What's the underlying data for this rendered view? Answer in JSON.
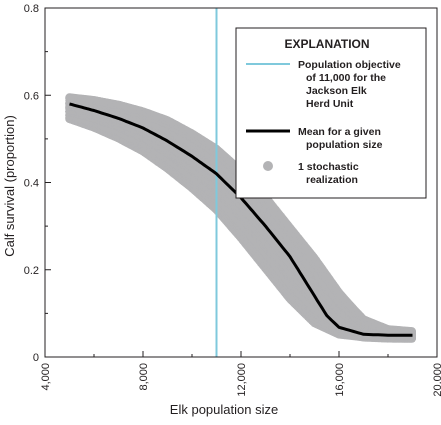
{
  "chart_data": {
    "type": "scatter",
    "xlabel": "Elk population size",
    "ylabel": "Calf survival (proportion)",
    "xlim": [
      4000,
      20000
    ],
    "ylim": [
      0,
      0.8
    ],
    "x_ticks": [
      "4,000",
      "8,000",
      "12,000",
      "16,000",
      "20,000"
    ],
    "y_ticks": [
      "0",
      "0.2",
      "0.4",
      "0.6",
      "0.8"
    ],
    "x_tick_values": [
      4000,
      8000,
      12000,
      16000,
      20000
    ],
    "y_tick_values": [
      0,
      0.2,
      0.4,
      0.6,
      0.8
    ],
    "grid": false,
    "legend_placement": "top-right",
    "legend": {
      "title": "EXPLANATION",
      "items": [
        {
          "kind": "line",
          "color": "#7fc9dc",
          "lines": [
            "Population objective",
            "of 11,000 for the",
            "Jackson Elk",
            "Herd Unit"
          ]
        },
        {
          "kind": "line",
          "color": "#000000",
          "lines": [
            "Mean for a given",
            "population size"
          ]
        },
        {
          "kind": "point",
          "color": "#b3b3b5",
          "lines": [
            "1 stochastic",
            "realization"
          ]
        }
      ]
    },
    "reference_line": {
      "x": 11000,
      "color": "#7fc9dc"
    },
    "series": [
      {
        "kind": "mean",
        "color": "#000000",
        "x": [
          5000,
          6000,
          7000,
          8000,
          9000,
          10000,
          11000,
          12000,
          13000,
          14000,
          15000,
          15500,
          16000,
          17000,
          18000,
          19000
        ],
        "y": [
          0.58,
          0.565,
          0.547,
          0.525,
          0.495,
          0.46,
          0.42,
          0.365,
          0.3,
          0.23,
          0.14,
          0.095,
          0.068,
          0.052,
          0.05,
          0.05
        ]
      },
      {
        "kind": "stochastic_band",
        "color": "#b3b3b5",
        "x": [
          5000,
          6000,
          7000,
          8000,
          9000,
          10000,
          11000,
          12000,
          13000,
          14000,
          15000,
          16000,
          17000,
          18000,
          19000
        ],
        "y_low": [
          0.545,
          0.525,
          0.5,
          0.47,
          0.43,
          0.385,
          0.335,
          0.27,
          0.2,
          0.13,
          0.075,
          0.05,
          0.045,
          0.045,
          0.045
        ],
        "y_high": [
          0.595,
          0.59,
          0.58,
          0.565,
          0.545,
          0.515,
          0.48,
          0.43,
          0.37,
          0.3,
          0.23,
          0.15,
          0.085,
          0.06,
          0.055
        ]
      }
    ]
  }
}
